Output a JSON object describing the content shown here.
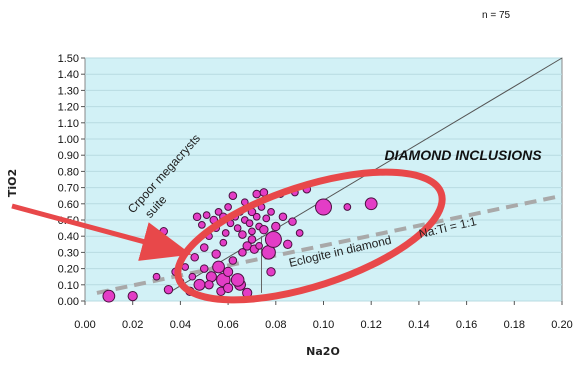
{
  "chart_data": {
    "type": "scatter",
    "sample_count_label": "n = 75",
    "xlabel": "Na2O",
    "ylabel": "TiO2",
    "xlim": [
      0,
      0.2
    ],
    "ylim": [
      0,
      1.5
    ],
    "x_ticks": [
      "0.00",
      "0.02",
      "0.04",
      "0.06",
      "0.08",
      "0.10",
      "0.12",
      "0.14",
      "0.16",
      "0.18",
      "0.20"
    ],
    "y_ticks": [
      "0.00",
      "0.10",
      "0.20",
      "0.30",
      "0.40",
      "0.50",
      "0.60",
      "0.70",
      "0.80",
      "0.90",
      "1.00",
      "1.10",
      "1.20",
      "1.30",
      "1.40",
      "1.50"
    ],
    "grid": "horizontal",
    "background_color": "#d2f1f6",
    "point_color": "#e33dc6",
    "point_edge_color": "#4a1040",
    "highlight_color": "#e8484a",
    "reference_lines": [
      {
        "name": "solid-trend",
        "points": [
          [
            0.035,
            0.05
          ],
          [
            0.2,
            1.5
          ]
        ],
        "style": "solid",
        "color": "#555555"
      },
      {
        "name": "na-ti-1-1",
        "points": [
          [
            0.005,
            0.05
          ],
          [
            0.2,
            0.65
          ]
        ],
        "style": "dashed",
        "color": "#a9a9a9"
      },
      {
        "name": "eclogite-divider",
        "points": [
          [
            0.074,
            0.05
          ],
          [
            0.074,
            0.4
          ]
        ],
        "style": "solid",
        "color": "#666666"
      }
    ],
    "annotations": {
      "megacrysts": "Crpoor megacrysts suite",
      "eclogite": "Eclogite in diamond",
      "ratio": "Na:Ti = 1:1",
      "diamond": "DIAMOND INCLUSIONS"
    },
    "points": [
      {
        "x": 0.01,
        "y": 0.03,
        "size": 1.4
      },
      {
        "x": 0.02,
        "y": 0.03,
        "size": 1.1
      },
      {
        "x": 0.03,
        "y": 0.15,
        "size": 0.8
      },
      {
        "x": 0.033,
        "y": 0.43,
        "size": 0.9
      },
      {
        "x": 0.035,
        "y": 0.07,
        "size": 1.0
      },
      {
        "x": 0.038,
        "y": 0.18,
        "size": 0.9
      },
      {
        "x": 0.04,
        "y": 0.12,
        "size": 0.8
      },
      {
        "x": 0.042,
        "y": 0.21,
        "size": 0.8
      },
      {
        "x": 0.044,
        "y": 0.06,
        "size": 1.0
      },
      {
        "x": 0.045,
        "y": 0.15,
        "size": 0.8
      },
      {
        "x": 0.046,
        "y": 0.27,
        "size": 0.9
      },
      {
        "x": 0.047,
        "y": 0.52,
        "size": 0.9
      },
      {
        "x": 0.048,
        "y": 0.1,
        "size": 1.3
      },
      {
        "x": 0.049,
        "y": 0.47,
        "size": 0.8
      },
      {
        "x": 0.05,
        "y": 0.2,
        "size": 0.9
      },
      {
        "x": 0.05,
        "y": 0.33,
        "size": 0.9
      },
      {
        "x": 0.051,
        "y": 0.53,
        "size": 0.8
      },
      {
        "x": 0.052,
        "y": 0.4,
        "size": 0.8
      },
      {
        "x": 0.053,
        "y": 0.15,
        "size": 1.2
      },
      {
        "x": 0.054,
        "y": 0.5,
        "size": 0.9
      },
      {
        "x": 0.055,
        "y": 0.29,
        "size": 1.0
      },
      {
        "x": 0.055,
        "y": 0.45,
        "size": 0.8
      },
      {
        "x": 0.056,
        "y": 0.55,
        "size": 0.8
      },
      {
        "x": 0.057,
        "y": 0.06,
        "size": 1.0
      },
      {
        "x": 0.058,
        "y": 0.52,
        "size": 0.9
      },
      {
        "x": 0.058,
        "y": 0.13,
        "size": 1.6
      },
      {
        "x": 0.059,
        "y": 0.42,
        "size": 0.8
      },
      {
        "x": 0.06,
        "y": 0.58,
        "size": 0.8
      },
      {
        "x": 0.061,
        "y": 0.48,
        "size": 0.8
      },
      {
        "x": 0.062,
        "y": 0.25,
        "size": 0.9
      },
      {
        "x": 0.062,
        "y": 0.65,
        "size": 0.9
      },
      {
        "x": 0.063,
        "y": 0.52,
        "size": 0.8
      },
      {
        "x": 0.064,
        "y": 0.45,
        "size": 0.8
      },
      {
        "x": 0.065,
        "y": 0.1,
        "size": 1.3
      },
      {
        "x": 0.065,
        "y": 0.55,
        "size": 0.8
      },
      {
        "x": 0.066,
        "y": 0.3,
        "size": 0.9
      },
      {
        "x": 0.067,
        "y": 0.5,
        "size": 0.8
      },
      {
        "x": 0.067,
        "y": 0.61,
        "size": 0.8
      },
      {
        "x": 0.068,
        "y": 0.34,
        "size": 1.0
      },
      {
        "x": 0.069,
        "y": 0.48,
        "size": 0.8
      },
      {
        "x": 0.07,
        "y": 0.55,
        "size": 0.9
      },
      {
        "x": 0.07,
        "y": 0.43,
        "size": 0.8
      },
      {
        "x": 0.071,
        "y": 0.32,
        "size": 1.0
      },
      {
        "x": 0.072,
        "y": 0.52,
        "size": 0.8
      },
      {
        "x": 0.072,
        "y": 0.66,
        "size": 0.9
      },
      {
        "x": 0.073,
        "y": 0.46,
        "size": 0.8
      },
      {
        "x": 0.074,
        "y": 0.58,
        "size": 0.8
      },
      {
        "x": 0.075,
        "y": 0.44,
        "size": 1.0
      },
      {
        "x": 0.075,
        "y": 0.67,
        "size": 0.9
      },
      {
        "x": 0.076,
        "y": 0.51,
        "size": 0.8
      },
      {
        "x": 0.077,
        "y": 0.3,
        "size": 1.6
      },
      {
        "x": 0.078,
        "y": 0.55,
        "size": 0.8
      },
      {
        "x": 0.078,
        "y": 0.18,
        "size": 1.0
      },
      {
        "x": 0.079,
        "y": 0.38,
        "size": 1.9
      },
      {
        "x": 0.08,
        "y": 0.46,
        "size": 1.0
      },
      {
        "x": 0.082,
        "y": 0.66,
        "size": 0.8
      },
      {
        "x": 0.083,
        "y": 0.52,
        "size": 0.9
      },
      {
        "x": 0.085,
        "y": 0.35,
        "size": 1.0
      },
      {
        "x": 0.087,
        "y": 0.49,
        "size": 0.9
      },
      {
        "x": 0.088,
        "y": 0.67,
        "size": 0.8
      },
      {
        "x": 0.09,
        "y": 0.42,
        "size": 0.8
      },
      {
        "x": 0.093,
        "y": 0.69,
        "size": 0.9
      },
      {
        "x": 0.1,
        "y": 0.58,
        "size": 1.9
      },
      {
        "x": 0.11,
        "y": 0.58,
        "size": 0.8
      },
      {
        "x": 0.12,
        "y": 0.6,
        "size": 1.4
      },
      {
        "x": 0.068,
        "y": 0.05,
        "size": 1.1
      },
      {
        "x": 0.056,
        "y": 0.21,
        "size": 1.4
      },
      {
        "x": 0.064,
        "y": 0.13,
        "size": 1.5
      },
      {
        "x": 0.06,
        "y": 0.08,
        "size": 1.1
      },
      {
        "x": 0.052,
        "y": 0.1,
        "size": 1.0
      },
      {
        "x": 0.058,
        "y": 0.36,
        "size": 0.8
      },
      {
        "x": 0.066,
        "y": 0.41,
        "size": 0.9
      },
      {
        "x": 0.07,
        "y": 0.38,
        "size": 0.9
      },
      {
        "x": 0.073,
        "y": 0.34,
        "size": 0.8
      },
      {
        "x": 0.06,
        "y": 0.18,
        "size": 1.1
      }
    ]
  }
}
